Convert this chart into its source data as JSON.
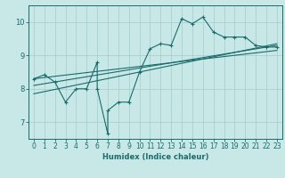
{
  "xlabel": "Humidex (Indice chaleur)",
  "ylabel": "",
  "bg_color": "#c8e8e8",
  "grid_color": "#a8d0d0",
  "line_color": "#1a6b6b",
  "xlim": [
    -0.5,
    23.5
  ],
  "ylim": [
    6.5,
    10.5
  ],
  "yticks": [
    7,
    8,
    9,
    10
  ],
  "xticks": [
    0,
    1,
    2,
    3,
    4,
    5,
    6,
    7,
    8,
    9,
    10,
    11,
    12,
    13,
    14,
    15,
    16,
    17,
    18,
    19,
    20,
    21,
    22,
    23
  ],
  "scatter_x": [
    0,
    1,
    2,
    3,
    4,
    5,
    6,
    6,
    7,
    7,
    8,
    9,
    10,
    11,
    12,
    13,
    14,
    15,
    16,
    17,
    18,
    19,
    20,
    21,
    22,
    23
  ],
  "scatter_y": [
    8.3,
    8.42,
    8.2,
    7.6,
    8.0,
    8.0,
    8.8,
    8.0,
    6.65,
    7.35,
    7.6,
    7.6,
    8.5,
    9.2,
    9.35,
    9.3,
    10.1,
    9.95,
    10.15,
    9.7,
    9.55,
    9.55,
    9.55,
    9.3,
    9.25,
    9.25
  ],
  "line1_x": [
    0,
    23
  ],
  "line1_y": [
    8.1,
    9.3
  ],
  "line2_x": [
    0,
    23
  ],
  "line2_y": [
    8.3,
    9.15
  ],
  "line3_x": [
    0,
    23
  ],
  "line3_y": [
    7.85,
    9.35
  ],
  "xlabel_fontsize": 6,
  "tick_fontsize": 5.5
}
